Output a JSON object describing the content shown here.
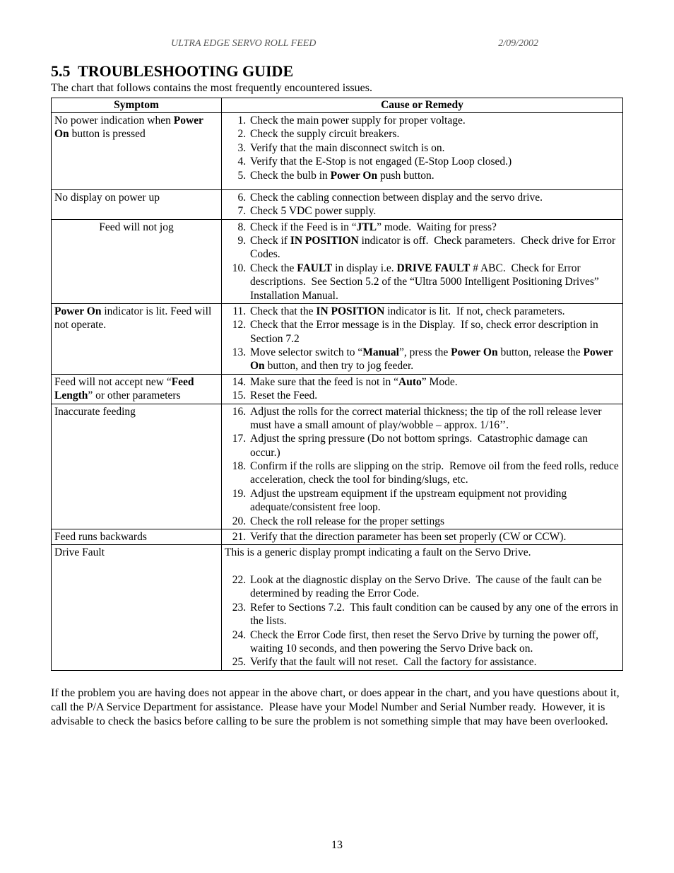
{
  "header": {
    "left": "ULTRA EDGE SERVO ROLL FEED",
    "right": "2/09/2002"
  },
  "section": {
    "number": "5.5",
    "title": "TROUBLESHOOTING GUIDE",
    "intro": "The chart that follows contains the most frequently encountered issues."
  },
  "table": {
    "col1_header": "Symptom",
    "col2_header": "Cause or Remedy",
    "rows": [
      {
        "symptom_html": "No power indication when <b>Power On</b> button is pressed",
        "symptom_center": false,
        "preface_html": "",
        "start": 1,
        "items": [
          "Check the main power supply for proper voltage.",
          "Check the supply circuit breakers.",
          "Verify that the main disconnect switch is on.",
          "Verify that the E-Stop is not engaged (E-Stop Loop closed.)",
          "Check the bulb in <b>Power On</b> push button."
        ],
        "row_pad_bottom": 10
      },
      {
        "symptom_html": "No display on power up",
        "symptom_center": false,
        "preface_html": "",
        "start": 6,
        "items": [
          "Check the cabling connection between display and the servo drive.",
          "Check 5 VDC power supply."
        ]
      },
      {
        "symptom_html": "Feed will not jog",
        "symptom_center": true,
        "preface_html": "",
        "start": 8,
        "items": [
          "Check if the Feed is in “<b>JTL</b>” mode.&nbsp; Waiting for press?",
          "Check if <b>IN POSITION</b> indicator is off.&nbsp; Check parameters.&nbsp; Check drive for Error Codes.",
          "Check the <b>FAULT</b> in display i.e. <b>DRIVE FAULT</b> # ABC.&nbsp; Check for Error descriptions.&nbsp; See Section 5.2 of the “Ultra 5000 Intelligent Positioning Drives” Installation Manual."
        ]
      },
      {
        "symptom_html": "<b>Power On</b> indicator is lit. Feed will not operate.",
        "symptom_center": false,
        "preface_html": "",
        "start": 11,
        "items": [
          "Check that the <b>IN POSITION</b> indicator is lit.&nbsp; If not, check parameters.",
          "Check that the Error message is in the Display.&nbsp; If so, check error description in Section 7.2",
          "Move selector switch to “<b>Manual</b>”, press the <b>Power On</b> button, release the <b>Power On</b> button, and then try to jog feeder."
        ]
      },
      {
        "symptom_html": "Feed will not accept new “<b>Feed Length</b>” or other parameters",
        "symptom_center": false,
        "preface_html": "",
        "start": 14,
        "items": [
          "Make sure that the feed is not in “<b>Auto</b>” Mode.",
          "Reset the Feed."
        ]
      },
      {
        "symptom_html": "Inaccurate feeding",
        "symptom_center": false,
        "preface_html": "",
        "start": 16,
        "items": [
          "Adjust the rolls for the correct material thickness; the tip of the roll release lever must have a small amount of play/wobble – approx. 1/16’’.",
          "Adjust the spring pressure (Do not bottom springs.&nbsp; Catastrophic damage can occur.)",
          "Confirm if the rolls are slipping on the strip.&nbsp; Remove oil from the feed rolls, reduce acceleration, check the tool for binding/slugs, etc.",
          "Adjust the upstream equipment if the upstream equipment not providing adequate/consistent free loop.",
          "Check the roll release for the proper settings"
        ]
      },
      {
        "symptom_html": "Feed runs backwards",
        "symptom_center": false,
        "preface_html": "",
        "start": 21,
        "items": [
          "Verify that the direction parameter has been set properly (CW or CCW)."
        ]
      },
      {
        "symptom_html": "Drive Fault",
        "symptom_center": false,
        "preface_html": "This is a generic display prompt indicating a fault on the Servo Drive.<br><br>",
        "start": 22,
        "items": [
          "Look at the diagnostic display on the Servo Drive.&nbsp; The cause of the fault can be determined by reading the Error Code.",
          "Refer to Sections 7.2.&nbsp; This fault condition can be caused by any one of the errors in the lists.",
          "Check the Error Code first, then reset the Servo Drive by turning the power off, waiting 10 seconds, and then powering the Servo Drive back on.",
          "Verify that the fault will not reset.&nbsp; Call the factory for assistance."
        ]
      }
    ]
  },
  "closing": "If the problem you are having does not appear in the above chart, or does appear in the chart, and you have questions about it, call the P/A Service Department for assistance.  Please have your Model Number and Serial Number ready.  However, it is advisable to check the basics before calling to be sure the problem is not something simple that may have been overlooked.",
  "page_number": "13"
}
